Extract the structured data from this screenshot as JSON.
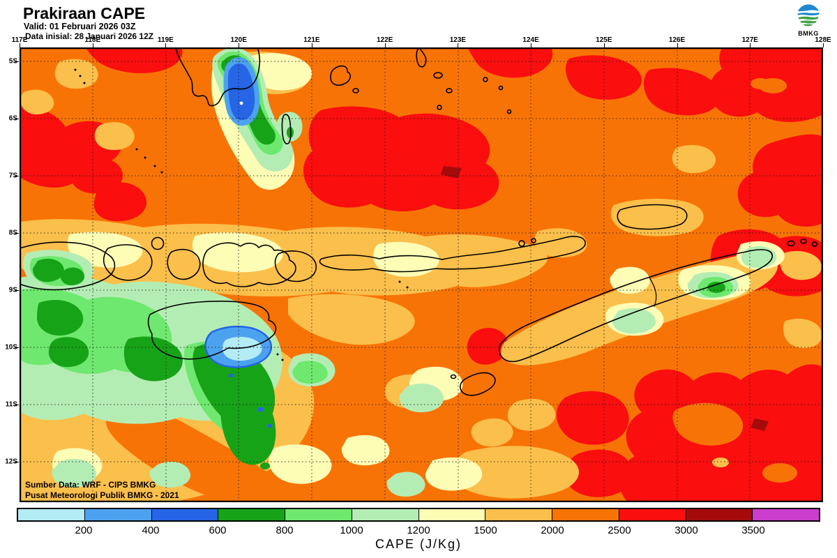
{
  "header": {
    "title": "Prakiraan CAPE",
    "valid_line": "Valid: 01 Februari 2026 03Z",
    "init_line": "Data inisial: 28 Januari 2026 12Z"
  },
  "logo": {
    "label": "BMKG"
  },
  "map": {
    "lon_labels": [
      "117E",
      "118E",
      "119E",
      "120E",
      "121E",
      "122E",
      "123E",
      "124E",
      "125E",
      "126E",
      "127E",
      "128E"
    ],
    "lat_labels": [
      "5S",
      "6S",
      "7S",
      "8S",
      "9S",
      "10S",
      "11S",
      "12S"
    ],
    "attribution_line1": "Sumber Data: WRF - CIPS BMKG",
    "attribution_line2": "Pusat Meteorologi Publik BMKG - 2021"
  },
  "colorbar": {
    "title": "CAPE (J/Kg)",
    "tick_labels": [
      "200",
      "400",
      "600",
      "800",
      "1000",
      "1200",
      "1500",
      "2000",
      "2500",
      "3000",
      "3500"
    ],
    "segment_colors": [
      "#B3ECF5",
      "#4DA2F0",
      "#2565E6",
      "#17A317",
      "#6EE86E",
      "#B4EDB4",
      "#FDFDB6",
      "#FBBF4B",
      "#F87306",
      "#FA0E0E",
      "#A50B0B",
      "#CB3DCB"
    ]
  }
}
